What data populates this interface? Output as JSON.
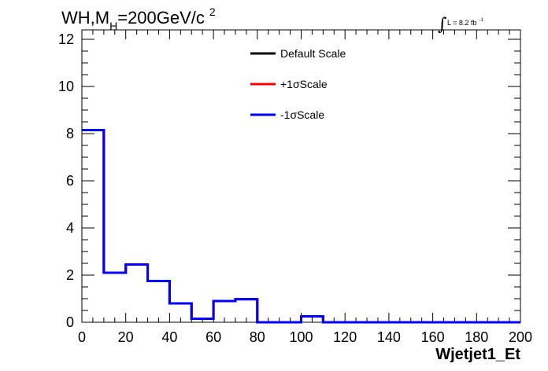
{
  "chart_data": {
    "type": "line",
    "style": "step-histogram",
    "title_parts": {
      "main": "WH,M",
      "sub": "H",
      "rest": "=200GeV/c",
      "sup": "2"
    },
    "lumi": {
      "integral": "∫",
      "text": "L = 8.2 fb",
      "sup": "-1"
    },
    "xlabel": "Wjetjet1_Et",
    "ylabel": "",
    "xlim": [
      0,
      200
    ],
    "ylim": [
      0,
      12.4
    ],
    "x_ticks": [
      0,
      20,
      40,
      60,
      80,
      100,
      120,
      140,
      160,
      180,
      200
    ],
    "y_ticks": [
      0,
      2,
      4,
      6,
      8,
      10,
      12
    ],
    "bin_edges": [
      0,
      10,
      20,
      30,
      40,
      50,
      60,
      70,
      80,
      90,
      100,
      110,
      120,
      130,
      140,
      150,
      160,
      170,
      180,
      190,
      200
    ],
    "legend_position": "top-center",
    "grid": false,
    "series": [
      {
        "name": "Default Scale",
        "color": "#000000",
        "values": [
          8.15,
          2.1,
          2.45,
          1.75,
          0.8,
          0.15,
          0.9,
          0.98,
          0,
          0,
          0.25,
          0,
          0,
          0,
          0,
          0,
          0,
          0,
          0,
          0
        ]
      },
      {
        "name": "+1σScale",
        "color": "#ff0000",
        "values": [
          8.15,
          2.1,
          2.45,
          1.75,
          0.8,
          0.15,
          0.9,
          0.98,
          0,
          0,
          0.25,
          0,
          0,
          0,
          0,
          0,
          0,
          0,
          0,
          0
        ]
      },
      {
        "name": "-1σScale",
        "color": "#0000ff",
        "values": [
          8.15,
          2.1,
          2.45,
          1.75,
          0.8,
          0.15,
          0.9,
          0.98,
          0,
          0,
          0.25,
          0,
          0,
          0,
          0,
          0,
          0,
          0,
          0,
          0
        ]
      }
    ]
  }
}
